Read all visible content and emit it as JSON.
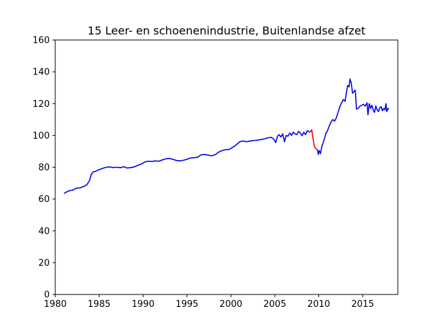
{
  "chart_data": {
    "type": "line",
    "title": "15 Leer- en schoenenindustrie, Buitenlandse afzet",
    "xlabel": "",
    "ylabel": "",
    "xlim": [
      1980,
      2019
    ],
    "ylim": [
      0,
      160
    ],
    "xticks": [
      1980,
      1985,
      1990,
      1995,
      2000,
      2005,
      2010,
      2015
    ],
    "yticks": [
      0,
      20,
      40,
      60,
      80,
      100,
      120,
      140,
      160
    ],
    "grid": false,
    "legend": "none",
    "series": [
      {
        "color": "#0000ee",
        "points": [
          [
            1981.0,
            63.5
          ],
          [
            1981.3,
            64.5
          ],
          [
            1981.6,
            65.2
          ],
          [
            1982.0,
            65.6
          ],
          [
            1982.4,
            66.8
          ],
          [
            1982.8,
            67.0
          ],
          [
            1983.2,
            67.8
          ],
          [
            1983.6,
            69.0
          ],
          [
            1983.9,
            71.5
          ],
          [
            1984.1,
            75.5
          ],
          [
            1984.3,
            77.0
          ],
          [
            1984.6,
            77.5
          ],
          [
            1985.0,
            78.5
          ],
          [
            1985.4,
            79.3
          ],
          [
            1985.8,
            80.0
          ],
          [
            1986.2,
            80.2
          ],
          [
            1986.6,
            79.8
          ],
          [
            1987.0,
            80.0
          ],
          [
            1987.4,
            79.7
          ],
          [
            1987.8,
            80.3
          ],
          [
            1988.2,
            79.5
          ],
          [
            1988.6,
            79.8
          ],
          [
            1989.0,
            80.2
          ],
          [
            1989.4,
            81.2
          ],
          [
            1989.8,
            82.0
          ],
          [
            1990.2,
            83.3
          ],
          [
            1990.6,
            83.8
          ],
          [
            1991.0,
            83.6
          ],
          [
            1991.4,
            84.0
          ],
          [
            1991.8,
            83.8
          ],
          [
            1992.2,
            84.6
          ],
          [
            1992.6,
            85.3
          ],
          [
            1993.0,
            85.5
          ],
          [
            1993.4,
            85.0
          ],
          [
            1993.8,
            84.2
          ],
          [
            1994.2,
            84.0
          ],
          [
            1994.6,
            84.4
          ],
          [
            1995.0,
            85.0
          ],
          [
            1995.4,
            85.8
          ],
          [
            1995.8,
            86.0
          ],
          [
            1996.2,
            86.2
          ],
          [
            1996.6,
            87.8
          ],
          [
            1997.0,
            88.0
          ],
          [
            1997.4,
            87.6
          ],
          [
            1997.8,
            87.2
          ],
          [
            1998.2,
            87.8
          ],
          [
            1998.6,
            89.5
          ],
          [
            1999.0,
            90.5
          ],
          [
            1999.4,
            91.0
          ],
          [
            1999.8,
            91.2
          ],
          [
            2000.2,
            92.5
          ],
          [
            2000.6,
            94.0
          ],
          [
            2001.0,
            96.0
          ],
          [
            2001.4,
            96.5
          ],
          [
            2001.8,
            96.0
          ],
          [
            2002.2,
            96.5
          ],
          [
            2002.6,
            96.8
          ],
          [
            2003.0,
            97.0
          ],
          [
            2003.4,
            97.4
          ],
          [
            2003.8,
            97.8
          ],
          [
            2004.2,
            98.5
          ],
          [
            2004.6,
            98.8
          ],
          [
            2004.9,
            97.5
          ],
          [
            2005.1,
            95.5
          ],
          [
            2005.3,
            99.5
          ],
          [
            2005.5,
            100.5
          ],
          [
            2005.7,
            99.0
          ],
          [
            2005.9,
            101.0
          ],
          [
            2006.1,
            96.0
          ],
          [
            2006.3,
            100.0
          ],
          [
            2006.5,
            99.5
          ],
          [
            2006.7,
            101.5
          ],
          [
            2006.9,
            100.0
          ],
          [
            2007.1,
            102.0
          ],
          [
            2007.3,
            101.0
          ],
          [
            2007.5,
            100.5
          ],
          [
            2007.7,
            102.5
          ],
          [
            2007.9,
            101.5
          ],
          [
            2008.1,
            99.8
          ],
          [
            2008.3,
            102.0
          ],
          [
            2008.5,
            100.5
          ],
          [
            2008.7,
            103.0
          ],
          [
            2009.0,
            102.0
          ]
        ]
      },
      {
        "color": "#ee0000",
        "points": [
          [
            2009.0,
            102.0
          ],
          [
            2009.2,
            103.5
          ],
          [
            2009.35,
            98.0
          ],
          [
            2009.5,
            93.0
          ],
          [
            2009.7,
            91.5
          ],
          [
            2009.85,
            91.0
          ]
        ]
      },
      {
        "color": "#0000ee",
        "points": [
          [
            2009.85,
            91.0
          ],
          [
            2009.95,
            88.0
          ],
          [
            2010.05,
            90.5
          ],
          [
            2010.2,
            88.5
          ],
          [
            2010.35,
            93.0
          ],
          [
            2010.6,
            97.0
          ],
          [
            2010.8,
            101.0
          ],
          [
            2011.0,
            103.0
          ],
          [
            2011.2,
            106.0
          ],
          [
            2011.4,
            108.5
          ],
          [
            2011.6,
            110.0
          ],
          [
            2011.8,
            109.0
          ],
          [
            2012.0,
            111.0
          ],
          [
            2012.2,
            114.5
          ],
          [
            2012.4,
            118.0
          ],
          [
            2012.6,
            120.5
          ],
          [
            2012.8,
            122.5
          ],
          [
            2013.0,
            121.5
          ],
          [
            2013.15,
            127.0
          ],
          [
            2013.3,
            131.5
          ],
          [
            2013.45,
            130.5
          ],
          [
            2013.55,
            135.5
          ],
          [
            2013.7,
            133.0
          ],
          [
            2013.85,
            126.5
          ],
          [
            2014.0,
            127.5
          ],
          [
            2014.15,
            128.5
          ],
          [
            2014.3,
            116.5
          ],
          [
            2014.5,
            117.0
          ],
          [
            2014.7,
            118.5
          ],
          [
            2014.9,
            119.0
          ],
          [
            2015.1,
            119.5
          ],
          [
            2015.3,
            118.5
          ],
          [
            2015.5,
            120.5
          ],
          [
            2015.6,
            113.0
          ],
          [
            2015.75,
            120.0
          ],
          [
            2015.9,
            117.0
          ],
          [
            2016.05,
            119.0
          ],
          [
            2016.2,
            116.0
          ],
          [
            2016.35,
            114.5
          ],
          [
            2016.5,
            118.5
          ],
          [
            2016.65,
            116.0
          ],
          [
            2016.8,
            115.0
          ],
          [
            2016.95,
            117.5
          ],
          [
            2017.1,
            118.0
          ],
          [
            2017.25,
            115.5
          ],
          [
            2017.4,
            117.0
          ],
          [
            2017.55,
            116.0
          ],
          [
            2017.65,
            120.0
          ],
          [
            2017.75,
            115.0
          ],
          [
            2017.9,
            117.0
          ],
          [
            2018.0,
            116.5
          ]
        ]
      }
    ]
  }
}
